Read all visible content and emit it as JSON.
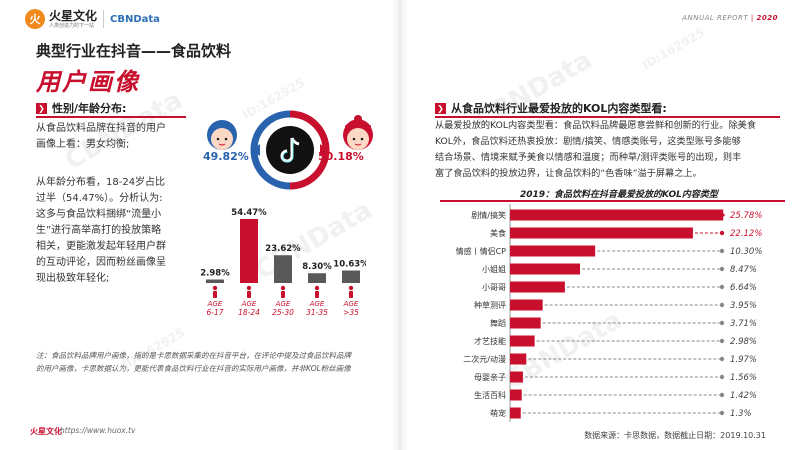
{
  "header": {
    "brand_name": "火星文化",
    "brand_sub": "人类创造力的下一站",
    "cbn_logo": "CBNData",
    "annual_label": "ANNUAL REPORT",
    "year": "2020"
  },
  "title": {
    "line1": "典型行业在抖音——食品饮料",
    "line2": "用户画像"
  },
  "left_section": {
    "heading": "性别/年龄分布:",
    "para1": [
      "从食品饮料品牌在抖音的用户",
      "画像上看：男女均衡;"
    ],
    "para2": [
      "从年龄分布看，18-24岁占比",
      "过半（54.47%）。分析认为:",
      "这多与食品饮料捆绑“流量小",
      "生”进行高举高打的投放策略",
      "相关，更能激发起年轻用户群",
      "的互动评论，因而粉丝画像呈",
      "现出极致年轻化;"
    ]
  },
  "gender": {
    "male_pct": "49.82%",
    "female_pct": "50.18%",
    "male_color": "#2a63ad",
    "female_color": "#c8102e",
    "center_icon": "tiktok-logo-icon"
  },
  "age_chart": {
    "type": "bar",
    "categories": [
      "6-17",
      "18-24",
      "25-30",
      "31-35",
      ">35"
    ],
    "category_prefix": "AGE",
    "values": [
      2.98,
      54.47,
      23.62,
      8.3,
      10.63
    ],
    "value_labels": [
      "2.98%",
      "54.47%",
      "23.62%",
      "8.30%",
      "10.63%"
    ],
    "highlight_index": 1,
    "highlight_color": "#c8102e",
    "base_color": "#595959"
  },
  "right_section": {
    "heading": "从食品饮料行业最爱投放的KOL内容类型看:",
    "para": [
      "从最爱投放的KOL内容类型看：食品饮料品牌最愿意尝鲜和创新的行业。除美食",
      "KOL外，食品饮料还热衷投放：剧情/搞笑、情感类账号，这类型账号多能够",
      "结合场景、情境来赋予美食以情感和温度；而种草/测评类账号的出现，则丰",
      "富了食品饮料的投放边界，让食品饮料的“色香味”溢于屏幕之上。"
    ]
  },
  "chart_data": [
    {
      "type": "bar",
      "title": "",
      "categories": [
        "6-17",
        "18-24",
        "25-30",
        "31-35",
        ">35"
      ],
      "values": [
        2.98,
        54.47,
        23.62,
        8.3,
        10.63
      ],
      "unit": "%"
    },
    {
      "type": "bar",
      "orientation": "horizontal",
      "title": "2019：食品饮料在抖音最爱投放的KOL内容类型",
      "categories": [
        "剧情/搞笑",
        "美食",
        "情感丨情侣CP",
        "小姐姐",
        "小哥哥",
        "种草测评",
        "舞蹈",
        "才艺技能",
        "二次元/动漫",
        "母婴亲子",
        "生活百科",
        "萌宠"
      ],
      "values": [
        25.78,
        22.12,
        10.3,
        8.47,
        6.64,
        3.95,
        3.71,
        2.98,
        1.97,
        1.56,
        1.42,
        1.3
      ],
      "value_labels": [
        "25.78%",
        "22.12%",
        "10.30%",
        "8.47%",
        "6.64%",
        "3.95%",
        "3.71%",
        "2.98%",
        "1.97%",
        "1.56%",
        "1.42%",
        "1.3%"
      ],
      "unit": "%",
      "bar_color": "#c8102e"
    }
  ],
  "footnote": [
    "注：食品饮料品牌用户画像，指的是卡思数据采集的在抖音平台，在评论中提及过食品饮料品牌",
    "的用户画像，卡思数据认为，更能代表食品饮料行业在抖音的实际用户画像，并非KOL粉丝画像"
  ],
  "footer": {
    "brand": "火星文化",
    "url": "https://www.huox.tv",
    "source": "数据来源：卡思数据，数据截止日期：2019.10.31"
  },
  "watermarks": [
    "CBNData",
    "ID:162925"
  ]
}
